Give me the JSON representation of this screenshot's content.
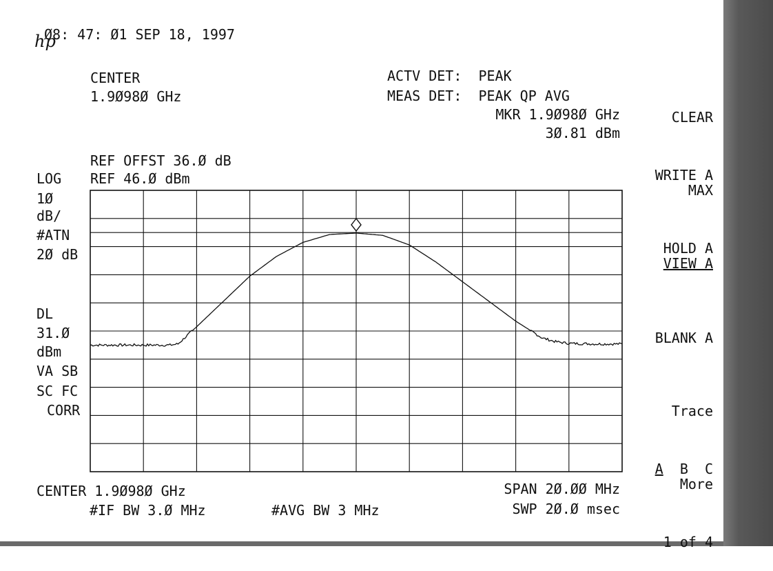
{
  "header": {
    "datetime": "Ø8: 47: Ø1 SEP 18, 1997",
    "center_label": "CENTER",
    "center_value": "1.9Ø98Ø GHz",
    "actv_det": "ACTV DET:  PEAK",
    "meas_det": "MEAS DET:  PEAK QP AVG",
    "mkr_freq": "MKR 1.9Ø98Ø GHz",
    "mkr_level": "3Ø.81 dBm",
    "ref_offset": "REF OFFST 36.Ø dB",
    "scale_mode": "LOG",
    "ref_level": "REF 46.Ø dBm"
  },
  "left_panel": {
    "scale_value": "1Ø",
    "scale_unit": "dB/",
    "atn_label": "#ATN",
    "atn_value": "2Ø dB",
    "dl_label": "DL",
    "dl_value": "31.Ø",
    "dl_unit": "dBm",
    "flags1": "VA SB",
    "flags2": "SC FC",
    "flags3": "CORR"
  },
  "footer": {
    "center": "CENTER 1.9Ø98Ø GHz",
    "if_bw": "#IF BW 3.Ø MHz",
    "avg_bw": "#AVG BW 3 MHz",
    "span": "SPAN 2Ø.ØØ MHz",
    "sweep": "SWP 2Ø.Ø msec"
  },
  "softkeys": {
    "clear_write_1": "CLEAR",
    "clear_write_2": "WRITE A",
    "max_hold_1": "MAX",
    "max_hold_2": "HOLD A",
    "view": "VIEW A",
    "blank": "BLANK A",
    "trace_label": "Trace",
    "trace_a": "A",
    "trace_b": "B",
    "trace_c": "C",
    "more_1": "More",
    "more_2": "1 of 4"
  },
  "chart_data": {
    "type": "line",
    "x_unit": "MHz offset from center",
    "y_unit": "dBm",
    "xlim": [
      -10,
      10
    ],
    "ylim": [
      -54,
      46
    ],
    "divisions": {
      "x": 10,
      "y": 10
    },
    "display_line": 31.0,
    "marker": {
      "x": 0,
      "y": 30.81
    },
    "series": [
      {
        "x": [
          -10,
          -9,
          -8,
          -7,
          -6.7,
          -6,
          -5,
          -4,
          -3,
          -2,
          -1,
          0,
          1,
          2,
          3,
          4,
          5,
          6,
          7,
          7.5,
          8,
          9,
          10
        ],
        "values": [
          -9,
          -9,
          -9,
          -9,
          -8.6,
          -2.5,
          6.5,
          15.5,
          22.5,
          27.5,
          30.3,
          30.81,
          30,
          26.6,
          20.5,
          13.5,
          6.5,
          -0.5,
          -6.5,
          -7.8,
          -8.4,
          -8.6,
          -8.6
        ]
      }
    ]
  }
}
